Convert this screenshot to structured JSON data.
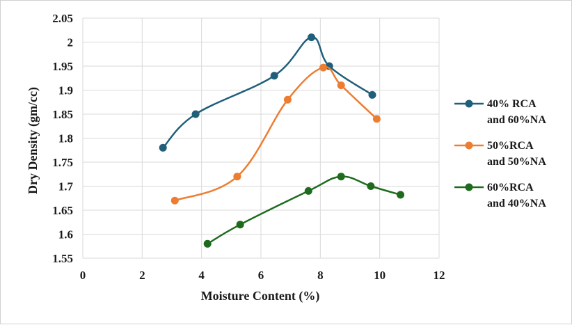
{
  "chart_data": {
    "type": "scatter",
    "title": "",
    "xlabel": "Moisture Content (%)",
    "ylabel": "Dry Density (gm/cc)",
    "xlim": [
      0,
      12
    ],
    "ylim": [
      1.55,
      2.05
    ],
    "xticks": [
      0,
      2,
      4,
      6,
      8,
      10,
      12
    ],
    "yticks": [
      1.55,
      1.6,
      1.65,
      1.7,
      1.75,
      1.8,
      1.85,
      1.9,
      1.95,
      2.0,
      2.05
    ],
    "xtick_labels": [
      "0",
      "2",
      "4",
      "6",
      "8",
      "10",
      "12"
    ],
    "ytick_labels": [
      "1.55",
      "1.6",
      "1.65",
      "1.7",
      "1.75",
      "1.8",
      "1.85",
      "1.9",
      "1.95",
      "2",
      "2.05"
    ],
    "grid": true,
    "legend_position": "right",
    "series": [
      {
        "name_line1": "40% RCA",
        "name_line2": "and 60%NA",
        "color": "#1f5f7a",
        "x": [
          2.7,
          3.8,
          6.45,
          7.7,
          8.3,
          9.75
        ],
        "y": [
          1.78,
          1.85,
          1.93,
          2.01,
          1.95,
          1.89
        ]
      },
      {
        "name_line1": "50%RCA",
        "name_line2": "and 50%NA",
        "color": "#ed7d31",
        "x": [
          3.1,
          5.2,
          6.9,
          8.1,
          8.7,
          9.9
        ],
        "y": [
          1.67,
          1.72,
          1.88,
          1.947,
          1.91,
          1.84
        ]
      },
      {
        "name_line1": "60%RCA",
        "name_line2": "and 40%NA",
        "color": "#1e6b1e",
        "x": [
          4.2,
          5.3,
          7.6,
          8.7,
          9.7,
          10.7
        ],
        "y": [
          1.58,
          1.62,
          1.69,
          1.72,
          1.7,
          1.682
        ]
      }
    ]
  }
}
